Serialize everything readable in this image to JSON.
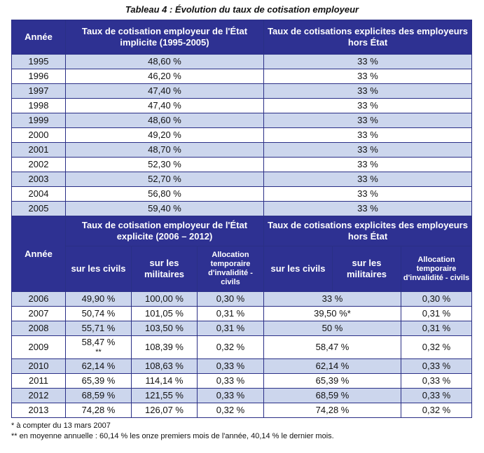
{
  "title": "Tableau 4 : Évolution du taux de cotisation employeur",
  "part1": {
    "col_year": "Année",
    "col_implicit": "Taux de cotisation employeur de l'État implicite (1995-2005)",
    "col_other": "Taux de cotisations explicites des employeurs hors État",
    "rows": [
      {
        "year": "1995",
        "implicit": "48,60 %",
        "other": "33 %"
      },
      {
        "year": "1996",
        "implicit": "46,20 %",
        "other": "33 %"
      },
      {
        "year": "1997",
        "implicit": "47,40 %",
        "other": "33 %"
      },
      {
        "year": "1998",
        "implicit": "47,40 %",
        "other": "33 %"
      },
      {
        "year": "1999",
        "implicit": "48,60 %",
        "other": "33 %"
      },
      {
        "year": "2000",
        "implicit": "49,20 %",
        "other": "33 %"
      },
      {
        "year": "2001",
        "implicit": "48,70 %",
        "other": "33 %"
      },
      {
        "year": "2002",
        "implicit": "52,30 %",
        "other": "33 %"
      },
      {
        "year": "2003",
        "implicit": "52,70 %",
        "other": "33 %"
      },
      {
        "year": "2004",
        "implicit": "56,80 %",
        "other": "33 %"
      },
      {
        "year": "2005",
        "implicit": "59,40 %",
        "other": "33 %"
      }
    ]
  },
  "part2": {
    "col_year": "Année",
    "group_state": "Taux de cotisation employeur de l'État explicite (2006 – 2012)",
    "group_other": "Taux de cotisations explicites des employeurs hors État",
    "sub_civils": "sur les civils",
    "sub_militaires": "sur les militaires",
    "sub_ati": "Allocation temporaire d'invalidité - civils",
    "rows": [
      {
        "year": "2006",
        "civ": "49,90 %",
        "mil": "100,00 %",
        "ati": "0,30 %",
        "other": "33 %",
        "other_ati": "0,30 %"
      },
      {
        "year": "2007",
        "civ": "50,74 %",
        "mil": "101,05 %",
        "ati": "0,31 %",
        "other": "39,50 %*",
        "other_ati": "0,31 %"
      },
      {
        "year": "2008",
        "civ": "55,71 %",
        "mil": "103,50 %",
        "ati": "0,31 %",
        "other": "50 %",
        "other_ati": "0,31 %"
      },
      {
        "year": "2009",
        "civ": "58,47 %",
        "civ_note": "**",
        "mil": "108,39 %",
        "ati": "0,32 %",
        "other": "58,47 %",
        "other_ati": "0,32 %"
      },
      {
        "year": "2010",
        "civ": "62,14 %",
        "mil": "108,63 %",
        "ati": "0,33 %",
        "other": "62,14 %",
        "other_ati": "0,33 %"
      },
      {
        "year": "2011",
        "civ": "65,39 %",
        "mil": "114,14 %",
        "ati": "0,33 %",
        "other": "65,39 %",
        "other_ati": "0,33 %"
      },
      {
        "year": "2012",
        "civ": "68,59 %",
        "mil": "121,55 %",
        "ati": "0,33 %",
        "other": "68,59 %",
        "other_ati": "0,33 %"
      },
      {
        "year": "2013",
        "civ": "74,28 %",
        "mil": "126,07 %",
        "ati": "0,32 %",
        "other": "74,28 %",
        "other_ati": "0,32 %"
      }
    ]
  },
  "notes": {
    "n1": "* à compter du 13 mars 2007",
    "n2": "** en moyenne annuelle : 60,14 % les onze premiers mois de l'année, 40,14 % le dernier mois."
  },
  "colors": {
    "header_bg": "#2e3192",
    "row_alt": "#ccd6ed"
  }
}
